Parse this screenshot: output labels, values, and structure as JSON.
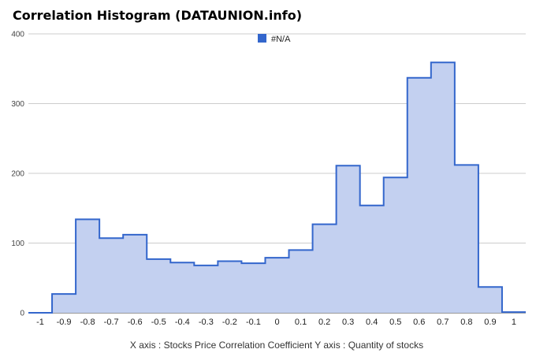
{
  "chart_data": {
    "type": "area",
    "title": "Correlation Histogram (DATAUNION.info)",
    "xlabel": "X axis : Stocks Price Correlation Coefficient  Y axis : Quantity of stocks",
    "legend": {
      "label": "#N/A",
      "position": "top-center"
    },
    "ylim": [
      0,
      400
    ],
    "yticks": [
      "0",
      "100",
      "200",
      "300",
      "400"
    ],
    "xticks": [
      "-1",
      "-0.9",
      "-0.8",
      "-0.7",
      "-0.6",
      "-0.5",
      "-0.4",
      "-0.3",
      "-0.2",
      "-0.1",
      "0",
      "0.1",
      "0.2",
      "0.3",
      "0.4",
      "0.5",
      "0.6",
      "0.7",
      "0.8",
      "0.9",
      "1"
    ],
    "xlim": [
      -1.05,
      1.05
    ],
    "grid": true,
    "colors": {
      "line": "#3366cc",
      "fill": "#c3d0f0",
      "grid": "#cccccc"
    },
    "series": [
      {
        "x": [
          -1,
          -0.9,
          -0.8,
          -0.7,
          -0.6,
          -0.5,
          -0.4,
          -0.3,
          -0.2,
          -0.1,
          0,
          0.1,
          0.2,
          0.3,
          0.4,
          0.5,
          0.6,
          0.7,
          0.8,
          0.9,
          1
        ],
        "values": [
          0,
          27,
          134,
          107,
          112,
          77,
          72,
          68,
          74,
          71,
          79,
          90,
          127,
          211,
          154,
          194,
          337,
          359,
          212,
          37,
          1
        ]
      }
    ]
  }
}
